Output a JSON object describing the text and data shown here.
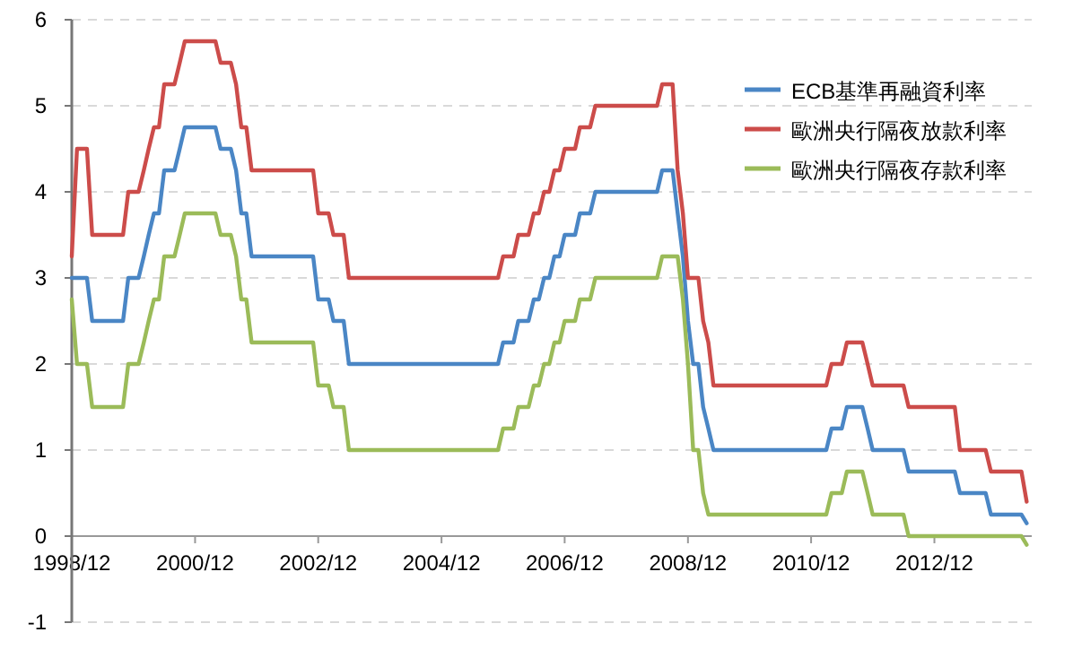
{
  "chart_data": {
    "type": "line",
    "x": [
      "1998-12",
      "1999-01",
      "1999-03",
      "1999-04",
      "1999-10",
      "1999-11",
      "2000-01",
      "2000-02",
      "2000-03",
      "2000-04",
      "2000-05",
      "2000-06",
      "2000-08",
      "2000-09",
      "2000-10",
      "2001-04",
      "2001-05",
      "2001-07",
      "2001-08",
      "2001-09",
      "2001-10",
      "2001-11",
      "2002-11",
      "2002-12",
      "2003-02",
      "2003-03",
      "2003-05",
      "2003-06",
      "2005-11",
      "2005-12",
      "2006-02",
      "2006-03",
      "2006-05",
      "2006-06",
      "2006-07",
      "2006-08",
      "2006-09",
      "2006-10",
      "2006-11",
      "2006-12",
      "2007-02",
      "2007-03",
      "2007-05",
      "2007-06",
      "2008-06",
      "2008-07",
      "2008-09",
      "2008-10",
      "2008-11",
      "2008-12",
      "2009-01",
      "2009-02",
      "2009-03",
      "2009-04",
      "2009-05",
      "2011-03",
      "2011-04",
      "2011-06",
      "2011-07",
      "2011-10",
      "2011-11",
      "2011-12",
      "2012-06",
      "2012-07",
      "2013-04",
      "2013-05",
      "2013-10",
      "2013-11",
      "2014-05",
      "2014-06"
    ],
    "series": [
      {
        "name": "ECB基準再融資利率",
        "color": "#4a86c5",
        "values": [
          3.0,
          3.0,
          3.0,
          2.5,
          2.5,
          3.0,
          3.0,
          3.25,
          3.5,
          3.75,
          3.75,
          4.25,
          4.25,
          4.5,
          4.75,
          4.75,
          4.5,
          4.5,
          4.25,
          3.75,
          3.75,
          3.25,
          3.25,
          2.75,
          2.75,
          2.5,
          2.5,
          2.0,
          2.0,
          2.25,
          2.25,
          2.5,
          2.5,
          2.75,
          2.75,
          3.0,
          3.0,
          3.25,
          3.25,
          3.5,
          3.5,
          3.75,
          3.75,
          4.0,
          4.0,
          4.25,
          4.25,
          3.75,
          3.25,
          2.5,
          2.0,
          2.0,
          1.5,
          1.25,
          1.0,
          1.0,
          1.25,
          1.25,
          1.5,
          1.5,
          1.25,
          1.0,
          1.0,
          0.75,
          0.75,
          0.5,
          0.5,
          0.25,
          0.25,
          0.15
        ]
      },
      {
        "name": "歐洲央行隔夜放款利率",
        "color": "#cc4c4a",
        "values": [
          3.25,
          4.5,
          4.5,
          3.5,
          3.5,
          4.0,
          4.0,
          4.25,
          4.5,
          4.75,
          4.75,
          5.25,
          5.25,
          5.5,
          5.75,
          5.75,
          5.5,
          5.5,
          5.25,
          4.75,
          4.75,
          4.25,
          4.25,
          3.75,
          3.75,
          3.5,
          3.5,
          3.0,
          3.0,
          3.25,
          3.25,
          3.5,
          3.5,
          3.75,
          3.75,
          4.0,
          4.0,
          4.25,
          4.25,
          4.5,
          4.5,
          4.75,
          4.75,
          5.0,
          5.0,
          5.25,
          5.25,
          4.25,
          3.75,
          3.0,
          3.0,
          3.0,
          2.5,
          2.25,
          1.75,
          1.75,
          2.0,
          2.0,
          2.25,
          2.25,
          2.0,
          1.75,
          1.75,
          1.5,
          1.5,
          1.0,
          1.0,
          0.75,
          0.75,
          0.4
        ]
      },
      {
        "name": "歐洲央行隔夜存款利率",
        "color": "#9bbb59",
        "values": [
          2.75,
          2.0,
          2.0,
          1.5,
          1.5,
          2.0,
          2.0,
          2.25,
          2.5,
          2.75,
          2.75,
          3.25,
          3.25,
          3.5,
          3.75,
          3.75,
          3.5,
          3.5,
          3.25,
          2.75,
          2.75,
          2.25,
          2.25,
          1.75,
          1.75,
          1.5,
          1.5,
          1.0,
          1.0,
          1.25,
          1.25,
          1.5,
          1.5,
          1.75,
          1.75,
          2.0,
          2.0,
          2.25,
          2.25,
          2.5,
          2.5,
          2.75,
          2.75,
          3.0,
          3.0,
          3.25,
          3.25,
          3.25,
          2.75,
          2.0,
          1.0,
          1.0,
          0.5,
          0.25,
          0.25,
          0.25,
          0.5,
          0.5,
          0.75,
          0.75,
          0.5,
          0.25,
          0.25,
          0.0,
          0.0,
          0.0,
          0.0,
          0.0,
          0.0,
          -0.1
        ]
      }
    ],
    "xlim": [
      "1998-12",
      "2014-07"
    ],
    "xticks": [
      {
        "value": "1998-12",
        "label": "1998/12"
      },
      {
        "value": "2000-12",
        "label": "2000/12"
      },
      {
        "value": "2002-12",
        "label": "2002/12"
      },
      {
        "value": "2004-12",
        "label": "2004/12"
      },
      {
        "value": "2006-12",
        "label": "2006/12"
      },
      {
        "value": "2008-12",
        "label": "2008/12"
      },
      {
        "value": "2010-12",
        "label": "2010/12"
      },
      {
        "value": "2012-12",
        "label": "2012/12"
      }
    ],
    "ylim": [
      -1,
      6
    ],
    "yticks": [
      -1,
      0,
      1,
      2,
      3,
      4,
      5,
      6
    ],
    "grid": "y",
    "legend": "top right",
    "marker": "none",
    "line_style": "solid"
  }
}
